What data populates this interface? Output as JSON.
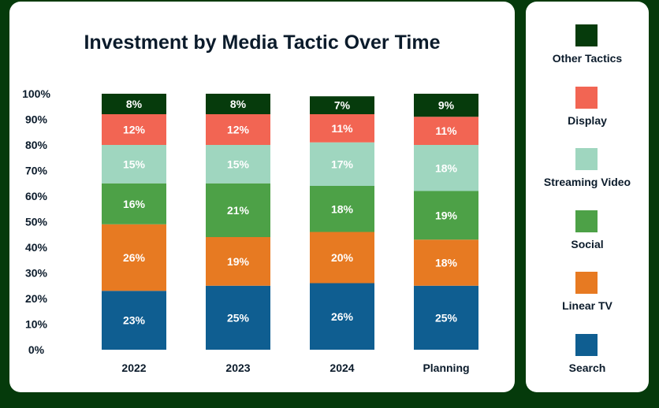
{
  "chart_data": {
    "type": "bar",
    "stacked": true,
    "title": "Investment by Media Tactic Over Time",
    "xlabel": "",
    "ylabel": "",
    "ylim": [
      0,
      100
    ],
    "y_ticks": [
      "0%",
      "10%",
      "20%",
      "30%",
      "40%",
      "50%",
      "60%",
      "70%",
      "80%",
      "90%",
      "100%"
    ],
    "categories": [
      "2022",
      "2023",
      "2024",
      "Planning"
    ],
    "grid": false,
    "legend_position": "right",
    "series": [
      {
        "name": "Search",
        "color": "#0f5e91",
        "values": [
          23,
          25,
          26,
          25
        ]
      },
      {
        "name": "Linear TV",
        "color": "#e77a22",
        "values": [
          26,
          19,
          20,
          18
        ]
      },
      {
        "name": "Social",
        "color": "#4da147",
        "values": [
          16,
          21,
          18,
          19
        ]
      },
      {
        "name": "Streaming Video",
        "color": "#9fd6bf",
        "values": [
          15,
          15,
          17,
          18
        ]
      },
      {
        "name": "Display",
        "color": "#f26553",
        "values": [
          12,
          12,
          11,
          11
        ]
      },
      {
        "name": "Other Tactics",
        "color": "#063b0c",
        "values": [
          8,
          8,
          7,
          9
        ]
      }
    ]
  }
}
